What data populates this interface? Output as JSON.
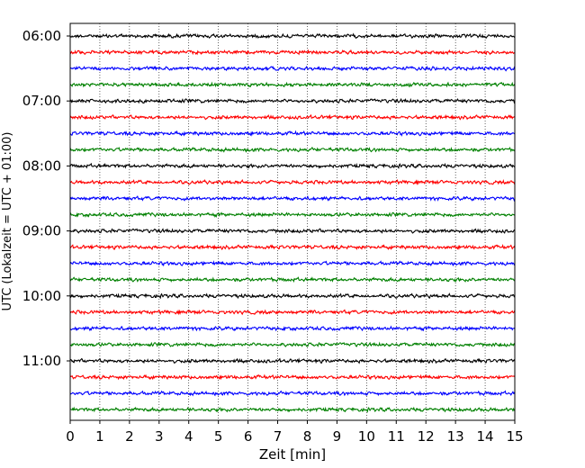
{
  "chart_data": {
    "type": "line",
    "title": "",
    "xlabel": "Zeit  [min]",
    "ylabel": "UTC (Lokalzeit = UTC + 01:00)",
    "xlim": [
      0,
      15
    ],
    "xticks": [
      0,
      1,
      2,
      3,
      4,
      5,
      6,
      7,
      8,
      9,
      10,
      11,
      12,
      13,
      14,
      15
    ],
    "y_ticks": [
      {
        "label": "06:00",
        "trace": 0
      },
      {
        "label": "07:00",
        "trace": 4
      },
      {
        "label": "08:00",
        "trace": 8
      },
      {
        "label": "09:00",
        "trace": 12
      },
      {
        "label": "10:00",
        "trace": 16
      },
      {
        "label": "11:00",
        "trace": 20
      }
    ],
    "trace_count": 24,
    "trace_interval_minutes": 15,
    "trace_colors": [
      "#000000",
      "#ff0000",
      "#0000ff",
      "#008000"
    ],
    "grid": "vertical dotted at each minute",
    "legend": "none"
  }
}
